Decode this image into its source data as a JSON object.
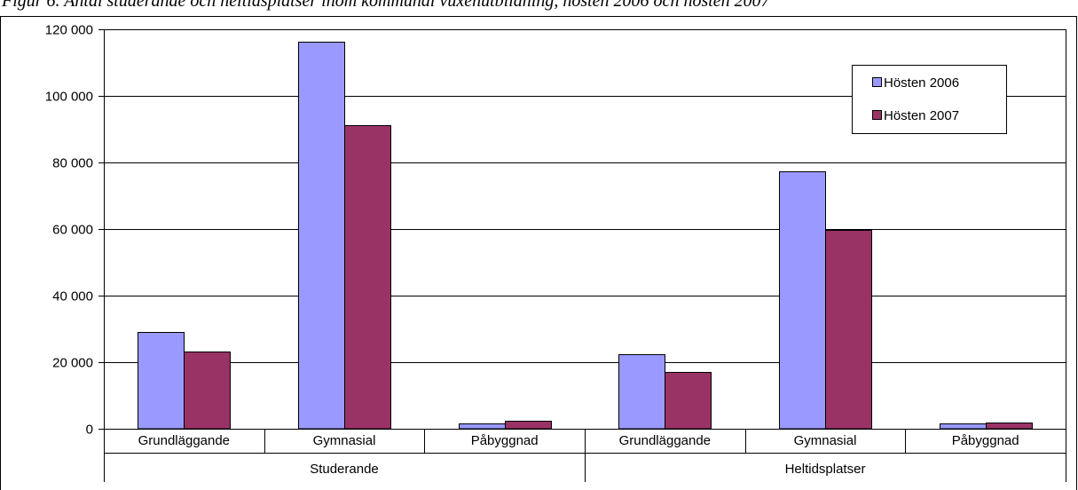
{
  "caption": "Figur 6. Antal studerande och heltidsplatser inom kommunal vuxenutbildning, hösten 2006 och hösten 2007",
  "chart_data": {
    "type": "bar",
    "groups": [
      {
        "label": "Studerande",
        "categories": [
          "Grundläggande",
          "Gymnasial",
          "Påbyggnad"
        ]
      },
      {
        "label": "Heltidsplatser",
        "categories": [
          "Grundläggande",
          "Gymnasial",
          "Påbyggnad"
        ]
      }
    ],
    "series": [
      {
        "name": "Hösten 2006",
        "color": "#9999ff",
        "values": [
          29200,
          116200,
          1700,
          22300,
          77400,
          1600
        ]
      },
      {
        "name": "Hösten 2007",
        "color": "#993366",
        "values": [
          23100,
          91100,
          2300,
          17200,
          59800,
          2000
        ]
      }
    ],
    "ylim": [
      0,
      120000
    ],
    "yticks": [
      0,
      20000,
      40000,
      60000,
      80000,
      100000,
      120000
    ],
    "ytick_labels": [
      "0",
      "20 000",
      "40 000",
      "60 000",
      "80 000",
      "100 000",
      "120 000"
    ],
    "grid": true,
    "legend_position": "top-right",
    "title": "",
    "xlabel": "",
    "ylabel": ""
  }
}
